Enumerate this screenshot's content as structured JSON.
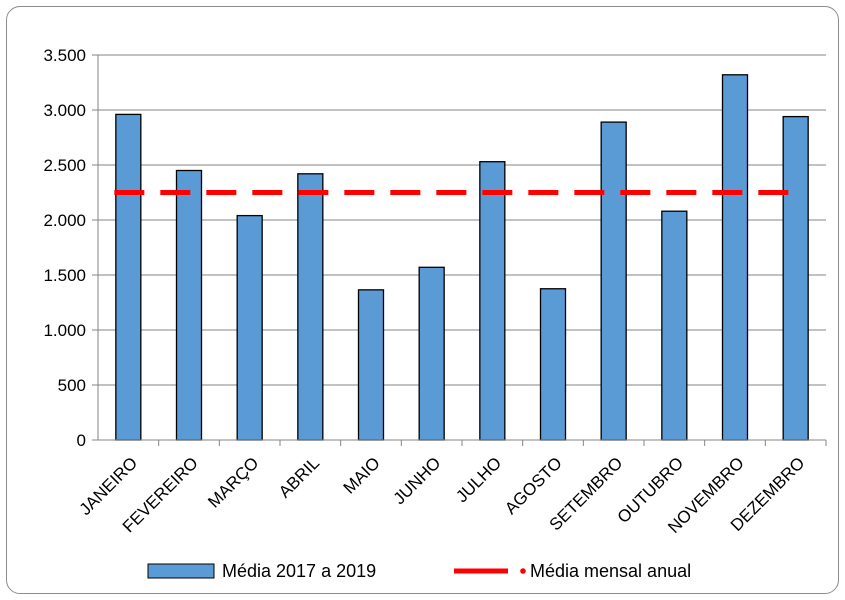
{
  "chart_data": {
    "type": "bar",
    "title": "",
    "xlabel": "",
    "ylabel": "",
    "ylim": [
      0,
      3500
    ],
    "ytick_values": [
      0,
      500,
      1000,
      1500,
      2000,
      2500,
      3000,
      3500
    ],
    "ytick_labels": [
      "0",
      "500",
      "1.000",
      "1.500",
      "2.000",
      "2.500",
      "3.000",
      "3.500"
    ],
    "grid": true,
    "categories": [
      "JANEIRO",
      "FEVEREIRO",
      "MARÇO",
      "ABRIL",
      "MAIO",
      "JUNHO",
      "JULHO",
      "AGOSTO",
      "SETEMBRO",
      "OUTUBRO",
      "NOVEMBRO",
      "DEZEMBRO"
    ],
    "series": [
      {
        "name": "Média 2017 a 2019",
        "type": "bar",
        "color": "#5b9bd5",
        "values": [
          2960,
          2450,
          2040,
          2420,
          1365,
          1570,
          2530,
          1375,
          2890,
          2080,
          3320,
          2940
        ]
      },
      {
        "name": "Média mensal anual",
        "type": "line",
        "style": "dashed",
        "color": "#ff0000",
        "value": 2250
      }
    ],
    "legend_position": "bottom"
  }
}
